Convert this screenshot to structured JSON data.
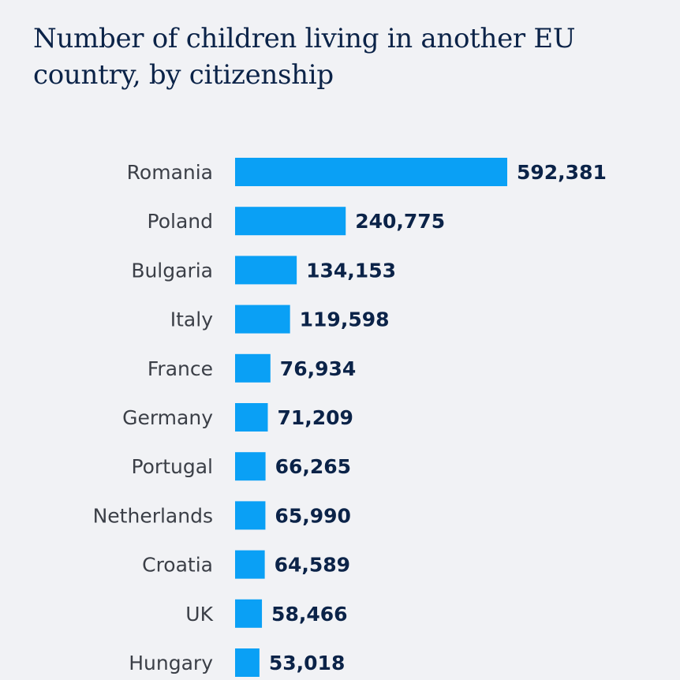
{
  "chart_data": {
    "type": "bar",
    "orientation": "horizontal",
    "title": "Number of children living in another EU country, by citizenship",
    "xlabel": "",
    "ylabel": "",
    "categories": [
      "Romania",
      "Poland",
      "Bulgaria",
      "Italy",
      "France",
      "Germany",
      "Portugal",
      "Netherlands",
      "Croatia",
      "UK",
      "Hungary"
    ],
    "values": [
      592381,
      240775,
      134153,
      119598,
      76934,
      71209,
      66265,
      65990,
      64589,
      58466,
      53018
    ],
    "value_labels": [
      "592,381",
      "240,775",
      "134,153",
      "119,598",
      "76,934",
      "71,209",
      "66,265",
      "65,990",
      "64,589",
      "58,466",
      "53,018"
    ],
    "xlim": [
      0,
      592381
    ],
    "grid": false,
    "legend": "none",
    "colors": {
      "bar": "#0aa0f5",
      "value_text": "#0b2348",
      "label_text": "#3b3f47",
      "background": "#f1f2f5"
    }
  }
}
